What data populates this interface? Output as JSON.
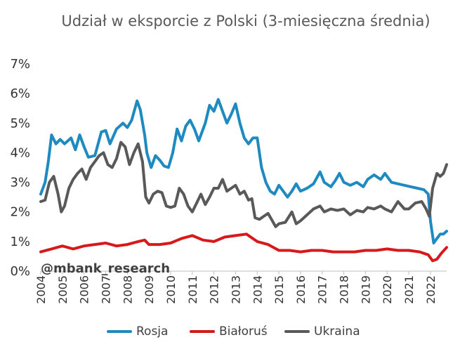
{
  "chart_data": {
    "type": "line",
    "title": "Udział w eksporcie z Polski (3-miesięczna średnia)",
    "xlabel": "",
    "ylabel": "",
    "ylim": [
      0,
      7
    ],
    "xlim": [
      2004.0,
      2022.75
    ],
    "y_ticks": [
      "0%",
      "1%",
      "2%",
      "3%",
      "4%",
      "5%",
      "6%",
      "7%"
    ],
    "x_ticks": [
      "2004",
      "2005",
      "2006",
      "2007",
      "2008",
      "2009",
      "2010",
      "2011",
      "2012",
      "2013",
      "2014",
      "2015",
      "2016",
      "2017",
      "2018",
      "2019",
      "2020",
      "2021",
      "2022"
    ],
    "grid": false,
    "legend_position": "bottom",
    "watermark": "@mbank_research",
    "series": [
      {
        "name": "Rosja",
        "color": "#1F8AC0",
        "points": [
          [
            2004.0,
            2.6
          ],
          [
            2004.2,
            3.0
          ],
          [
            2004.35,
            3.7
          ],
          [
            2004.5,
            4.6
          ],
          [
            2004.7,
            4.3
          ],
          [
            2004.9,
            4.45
          ],
          [
            2005.1,
            4.3
          ],
          [
            2005.4,
            4.5
          ],
          [
            2005.6,
            4.1
          ],
          [
            2005.8,
            4.6
          ],
          [
            2006.0,
            4.2
          ],
          [
            2006.2,
            3.85
          ],
          [
            2006.5,
            3.9
          ],
          [
            2006.8,
            4.7
          ],
          [
            2007.0,
            4.75
          ],
          [
            2007.2,
            4.3
          ],
          [
            2007.5,
            4.8
          ],
          [
            2007.8,
            5.0
          ],
          [
            2008.0,
            4.85
          ],
          [
            2008.2,
            5.1
          ],
          [
            2008.45,
            5.75
          ],
          [
            2008.6,
            5.45
          ],
          [
            2008.8,
            4.6
          ],
          [
            2008.9,
            4.0
          ],
          [
            2009.1,
            3.5
          ],
          [
            2009.3,
            3.9
          ],
          [
            2009.5,
            3.75
          ],
          [
            2009.7,
            3.55
          ],
          [
            2009.9,
            3.5
          ],
          [
            2010.1,
            4.0
          ],
          [
            2010.3,
            4.8
          ],
          [
            2010.5,
            4.4
          ],
          [
            2010.7,
            4.9
          ],
          [
            2010.9,
            5.1
          ],
          [
            2011.1,
            4.8
          ],
          [
            2011.3,
            4.4
          ],
          [
            2011.6,
            5.0
          ],
          [
            2011.8,
            5.6
          ],
          [
            2012.0,
            5.4
          ],
          [
            2012.2,
            5.8
          ],
          [
            2012.4,
            5.4
          ],
          [
            2012.6,
            5.0
          ],
          [
            2012.8,
            5.3
          ],
          [
            2013.0,
            5.65
          ],
          [
            2013.2,
            5.0
          ],
          [
            2013.4,
            4.5
          ],
          [
            2013.6,
            4.3
          ],
          [
            2013.8,
            4.5
          ],
          [
            2014.0,
            4.5
          ],
          [
            2014.2,
            3.5
          ],
          [
            2014.4,
            3.0
          ],
          [
            2014.6,
            2.7
          ],
          [
            2014.8,
            2.6
          ],
          [
            2015.0,
            2.9
          ],
          [
            2015.2,
            2.7
          ],
          [
            2015.4,
            2.5
          ],
          [
            2015.6,
            2.7
          ],
          [
            2015.8,
            2.95
          ],
          [
            2016.0,
            2.7
          ],
          [
            2016.3,
            2.8
          ],
          [
            2016.6,
            2.95
          ],
          [
            2016.9,
            3.35
          ],
          [
            2017.1,
            3.0
          ],
          [
            2017.4,
            2.85
          ],
          [
            2017.6,
            3.05
          ],
          [
            2017.8,
            3.3
          ],
          [
            2018.0,
            3.0
          ],
          [
            2018.3,
            2.9
          ],
          [
            2018.6,
            3.0
          ],
          [
            2018.9,
            2.85
          ],
          [
            2019.1,
            3.1
          ],
          [
            2019.4,
            3.25
          ],
          [
            2019.7,
            3.1
          ],
          [
            2019.9,
            3.3
          ],
          [
            2020.2,
            3.0
          ],
          [
            2020.5,
            2.95
          ],
          [
            2020.8,
            2.9
          ],
          [
            2021.1,
            2.85
          ],
          [
            2021.4,
            2.8
          ],
          [
            2021.7,
            2.75
          ],
          [
            2021.9,
            2.6
          ],
          [
            2022.0,
            1.7
          ],
          [
            2022.15,
            0.95
          ],
          [
            2022.3,
            1.1
          ],
          [
            2022.45,
            1.25
          ],
          [
            2022.6,
            1.25
          ],
          [
            2022.75,
            1.35
          ]
        ]
      },
      {
        "name": "Białoruś",
        "color": "#D7191C",
        "points": [
          [
            2004.0,
            0.65
          ],
          [
            2004.5,
            0.75
          ],
          [
            2005.0,
            0.85
          ],
          [
            2005.5,
            0.75
          ],
          [
            2006.0,
            0.85
          ],
          [
            2006.5,
            0.9
          ],
          [
            2007.0,
            0.95
          ],
          [
            2007.5,
            0.85
          ],
          [
            2008.0,
            0.9
          ],
          [
            2008.5,
            1.0
          ],
          [
            2008.8,
            1.05
          ],
          [
            2009.0,
            0.9
          ],
          [
            2009.5,
            0.9
          ],
          [
            2010.0,
            0.95
          ],
          [
            2010.5,
            1.1
          ],
          [
            2011.0,
            1.2
          ],
          [
            2011.5,
            1.05
          ],
          [
            2012.0,
            1.0
          ],
          [
            2012.5,
            1.15
          ],
          [
            2013.0,
            1.2
          ],
          [
            2013.5,
            1.25
          ],
          [
            2014.0,
            1.0
          ],
          [
            2014.5,
            0.9
          ],
          [
            2015.0,
            0.7
          ],
          [
            2015.5,
            0.7
          ],
          [
            2016.0,
            0.65
          ],
          [
            2016.5,
            0.7
          ],
          [
            2017.0,
            0.7
          ],
          [
            2017.5,
            0.65
          ],
          [
            2018.0,
            0.65
          ],
          [
            2018.5,
            0.65
          ],
          [
            2019.0,
            0.7
          ],
          [
            2019.5,
            0.7
          ],
          [
            2020.0,
            0.75
          ],
          [
            2020.5,
            0.7
          ],
          [
            2021.0,
            0.7
          ],
          [
            2021.5,
            0.65
          ],
          [
            2021.9,
            0.55
          ],
          [
            2022.1,
            0.35
          ],
          [
            2022.3,
            0.4
          ],
          [
            2022.5,
            0.6
          ],
          [
            2022.75,
            0.8
          ]
        ]
      },
      {
        "name": "Ukraina",
        "color": "#595959",
        "points": [
          [
            2004.0,
            2.35
          ],
          [
            2004.2,
            2.4
          ],
          [
            2004.4,
            3.0
          ],
          [
            2004.6,
            3.2
          ],
          [
            2004.8,
            2.6
          ],
          [
            2004.95,
            2.0
          ],
          [
            2005.1,
            2.2
          ],
          [
            2005.3,
            2.8
          ],
          [
            2005.5,
            3.1
          ],
          [
            2005.7,
            3.3
          ],
          [
            2005.9,
            3.45
          ],
          [
            2006.1,
            3.1
          ],
          [
            2006.3,
            3.5
          ],
          [
            2006.5,
            3.7
          ],
          [
            2006.7,
            3.9
          ],
          [
            2006.9,
            4.0
          ],
          [
            2007.1,
            3.6
          ],
          [
            2007.3,
            3.5
          ],
          [
            2007.5,
            3.8
          ],
          [
            2007.7,
            4.35
          ],
          [
            2007.9,
            4.2
          ],
          [
            2008.1,
            3.6
          ],
          [
            2008.3,
            4.0
          ],
          [
            2008.5,
            4.3
          ],
          [
            2008.7,
            3.7
          ],
          [
            2008.85,
            2.5
          ],
          [
            2009.0,
            2.3
          ],
          [
            2009.2,
            2.6
          ],
          [
            2009.4,
            2.7
          ],
          [
            2009.6,
            2.65
          ],
          [
            2009.8,
            2.2
          ],
          [
            2010.0,
            2.15
          ],
          [
            2010.2,
            2.2
          ],
          [
            2010.4,
            2.8
          ],
          [
            2010.6,
            2.6
          ],
          [
            2010.8,
            2.2
          ],
          [
            2011.0,
            2.0
          ],
          [
            2011.2,
            2.3
          ],
          [
            2011.4,
            2.6
          ],
          [
            2011.6,
            2.25
          ],
          [
            2011.8,
            2.5
          ],
          [
            2012.0,
            2.8
          ],
          [
            2012.2,
            2.8
          ],
          [
            2012.4,
            3.1
          ],
          [
            2012.6,
            2.7
          ],
          [
            2012.8,
            2.8
          ],
          [
            2013.0,
            2.9
          ],
          [
            2013.2,
            2.6
          ],
          [
            2013.4,
            2.7
          ],
          [
            2013.6,
            2.4
          ],
          [
            2013.75,
            2.45
          ],
          [
            2013.9,
            1.8
          ],
          [
            2014.1,
            1.75
          ],
          [
            2014.3,
            1.85
          ],
          [
            2014.5,
            1.95
          ],
          [
            2014.7,
            1.7
          ],
          [
            2014.85,
            1.5
          ],
          [
            2015.0,
            1.6
          ],
          [
            2015.3,
            1.65
          ],
          [
            2015.6,
            2.0
          ],
          [
            2015.8,
            1.6
          ],
          [
            2016.0,
            1.7
          ],
          [
            2016.3,
            1.9
          ],
          [
            2016.6,
            2.1
          ],
          [
            2016.9,
            2.2
          ],
          [
            2017.1,
            2.0
          ],
          [
            2017.4,
            2.1
          ],
          [
            2017.7,
            2.05
          ],
          [
            2018.0,
            2.1
          ],
          [
            2018.3,
            1.9
          ],
          [
            2018.6,
            2.05
          ],
          [
            2018.9,
            2.0
          ],
          [
            2019.1,
            2.15
          ],
          [
            2019.4,
            2.1
          ],
          [
            2019.7,
            2.2
          ],
          [
            2019.9,
            2.1
          ],
          [
            2020.2,
            2.0
          ],
          [
            2020.5,
            2.35
          ],
          [
            2020.8,
            2.1
          ],
          [
            2021.0,
            2.1
          ],
          [
            2021.3,
            2.3
          ],
          [
            2021.6,
            2.35
          ],
          [
            2021.8,
            2.1
          ],
          [
            2021.95,
            1.85
          ],
          [
            2022.1,
            2.8
          ],
          [
            2022.3,
            3.3
          ],
          [
            2022.45,
            3.2
          ],
          [
            2022.6,
            3.3
          ],
          [
            2022.75,
            3.6
          ]
        ]
      }
    ]
  }
}
